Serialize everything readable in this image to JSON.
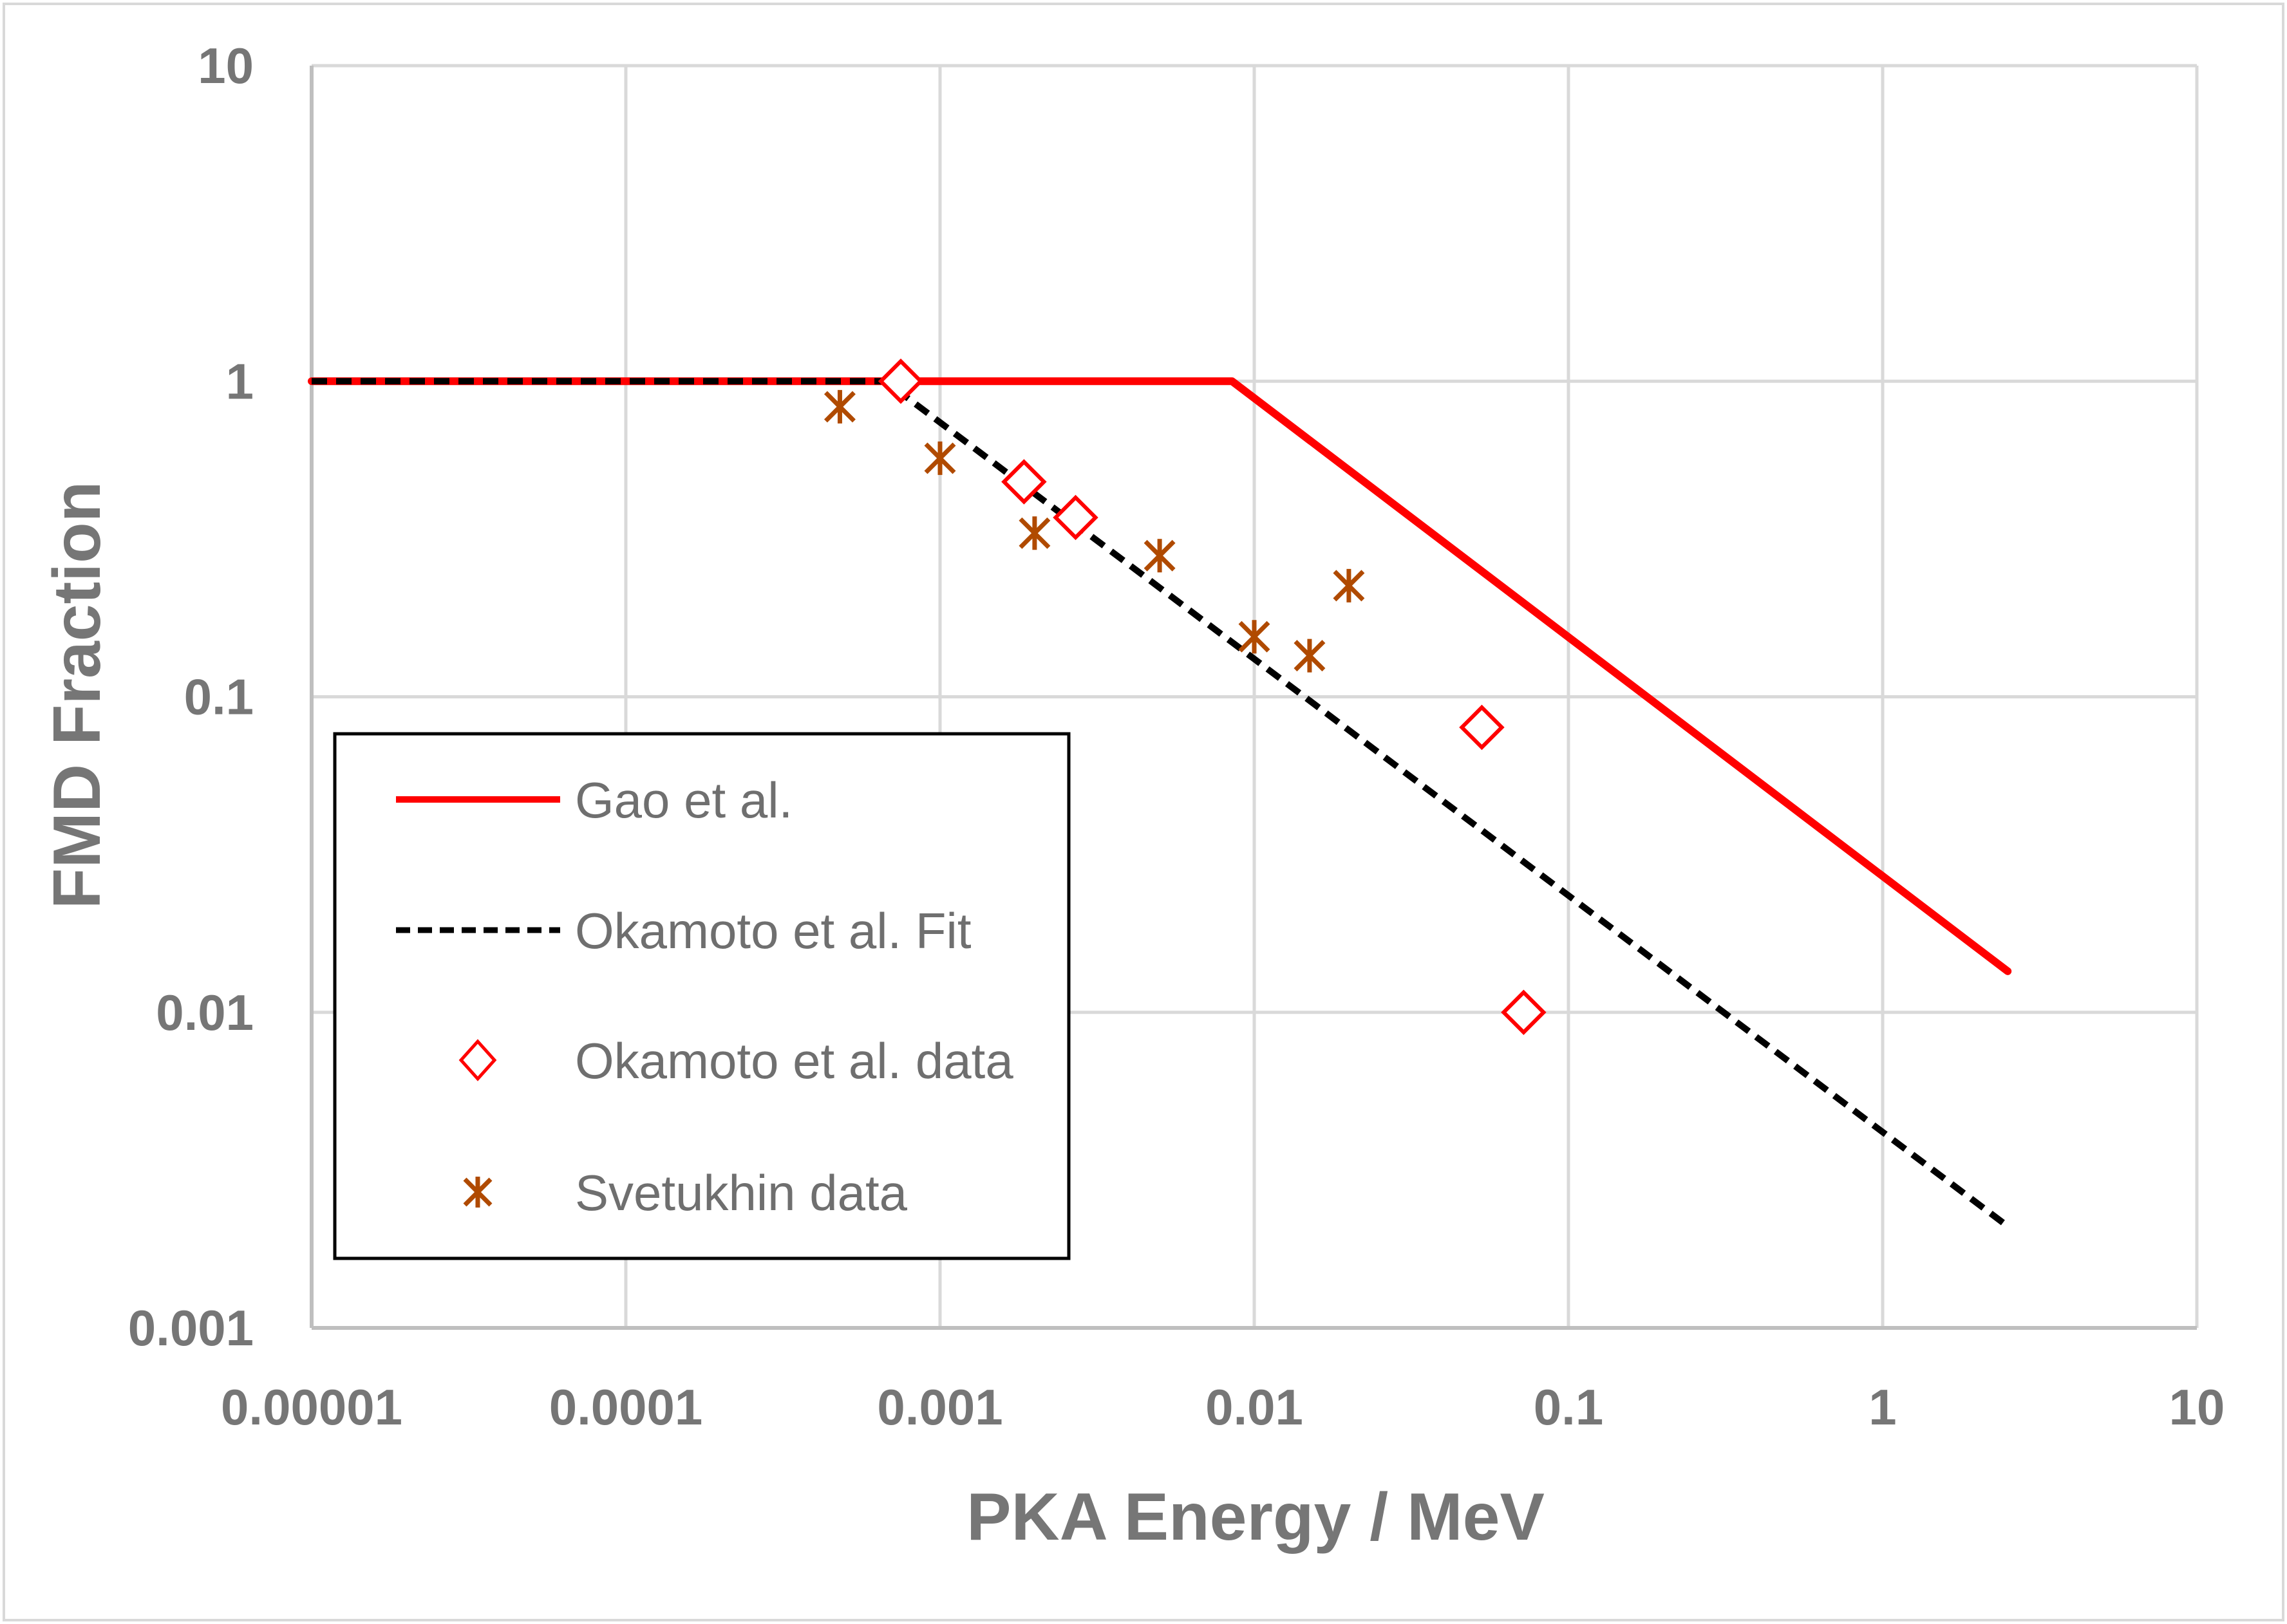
{
  "chart_data": {
    "type": "scatter",
    "title": "",
    "xlabel": "PKA Energy / MeV",
    "ylabel": "FMD Fraction",
    "xscale": "log",
    "yscale": "log",
    "xlim": [
      1e-05,
      10
    ],
    "ylim": [
      0.001,
      10
    ],
    "x_ticks": [
      {
        "value": 1e-05,
        "label": "0.00001"
      },
      {
        "value": 0.0001,
        "label": "0.0001"
      },
      {
        "value": 0.001,
        "label": "0.001"
      },
      {
        "value": 0.01,
        "label": "0.01"
      },
      {
        "value": 0.1,
        "label": "0.1"
      },
      {
        "value": 1,
        "label": "1"
      },
      {
        "value": 10,
        "label": "10"
      }
    ],
    "y_ticks": [
      {
        "value": 0.001,
        "label": "0.001"
      },
      {
        "value": 0.01,
        "label": "0.01"
      },
      {
        "value": 0.1,
        "label": "0.1"
      },
      {
        "value": 1,
        "label": "1"
      },
      {
        "value": 10,
        "label": "10"
      }
    ],
    "grid": true,
    "legend_position": "lower-left",
    "series": [
      {
        "name": "Gao et al.",
        "kind": "line",
        "style": "solid",
        "color": "#ff0000",
        "x": [
          1e-05,
          0.0085,
          2.5
        ],
        "y": [
          1,
          1,
          0.0135
        ]
      },
      {
        "name": "Okamoto et al. Fit",
        "kind": "line",
        "style": "dashed",
        "color": "#000000",
        "x": [
          1e-05,
          0.00067,
          2.5
        ],
        "y": [
          1,
          1,
          0.0021
        ]
      },
      {
        "name": "Okamoto et al. data",
        "kind": "marker",
        "marker": "diamond",
        "color": "#ff0000",
        "x": [
          0.00075,
          0.00185,
          0.0027,
          0.053,
          0.072
        ],
        "y": [
          1.0,
          0.48,
          0.37,
          0.08,
          0.01
        ]
      },
      {
        "name": "Svetukhin data",
        "kind": "marker",
        "marker": "asterisk",
        "color": "#b04a00",
        "x": [
          0.00048,
          0.001,
          0.002,
          0.005,
          0.01,
          0.015,
          0.02
        ],
        "y": [
          0.83,
          0.57,
          0.33,
          0.28,
          0.155,
          0.135,
          0.225
        ]
      }
    ]
  }
}
